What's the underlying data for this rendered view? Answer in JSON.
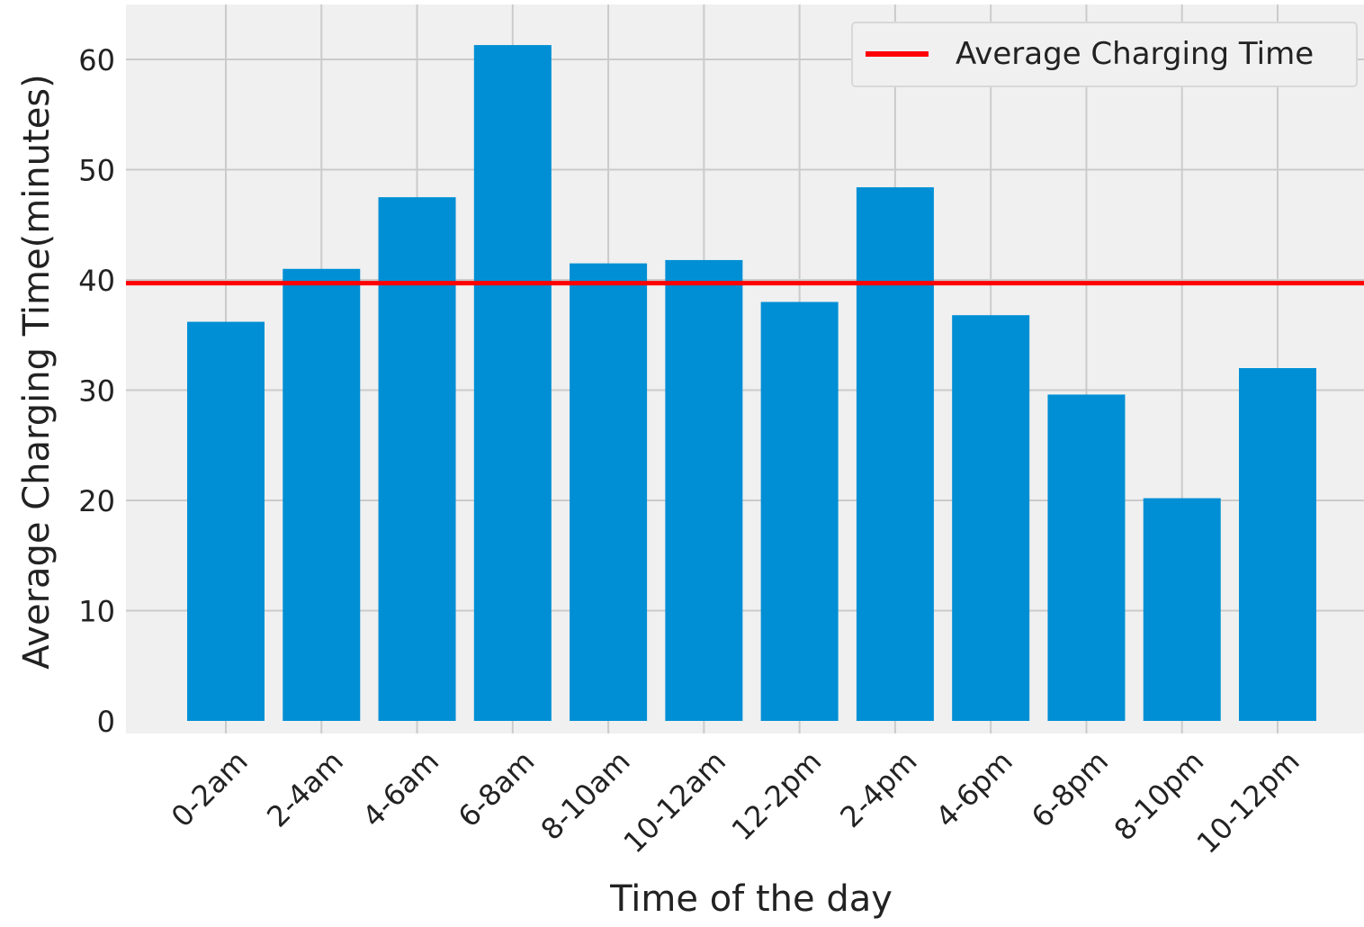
{
  "chart_data": {
    "type": "bar",
    "title": "",
    "xlabel": "Time of the day",
    "ylabel": "Average Charging Time(minutes)",
    "categories": [
      "0-2am",
      "2-4am",
      "4-6am",
      "6-8am",
      "8-10am",
      "10-12am",
      "12-2pm",
      "2-4pm",
      "4-6pm",
      "6-8pm",
      "8-10pm",
      "10-12pm"
    ],
    "values": [
      36.2,
      41.0,
      47.5,
      61.3,
      41.5,
      41.8,
      38.0,
      48.4,
      36.8,
      29.6,
      20.2,
      32.0
    ],
    "ylim": [
      0,
      64.5
    ],
    "yticks": [
      0,
      10,
      20,
      30,
      40,
      50,
      60
    ],
    "reference_line": {
      "label": "Average Charging Time",
      "value": 39.7,
      "color": "#ff0000"
    },
    "legend": {
      "position": "top-right",
      "entries": [
        "Average Charging Time"
      ]
    },
    "grid": true,
    "colors": {
      "bar": "#008fd5",
      "plot_background": "#f0f0f0",
      "grid": "#cbcbcb",
      "text": "#222222"
    }
  }
}
